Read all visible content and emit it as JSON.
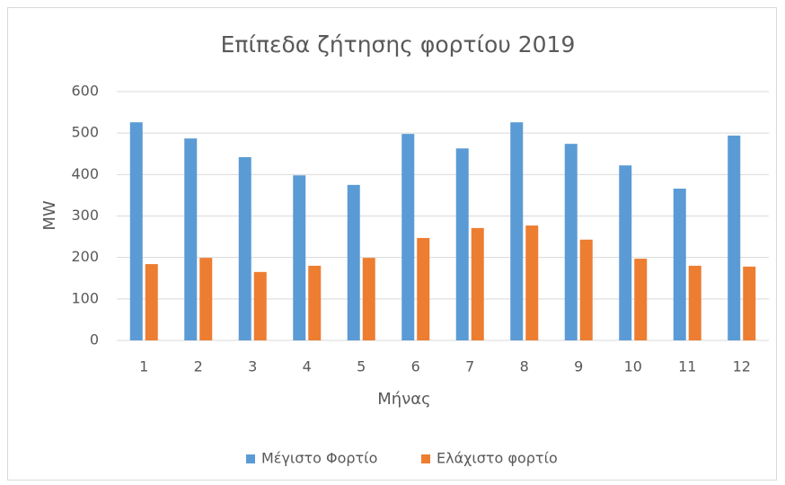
{
  "chart_data": {
    "type": "bar",
    "title": "Επίπεδα ζήτησης φορτίου 2019",
    "x_label": "Μήνας",
    "y_label": "MW",
    "categories": [
      1,
      2,
      3,
      4,
      5,
      6,
      7,
      8,
      9,
      10,
      11,
      12
    ],
    "series": [
      {
        "name": "Μέγιστο Φορτίο",
        "color": "#5b9bd5",
        "values": [
          526,
          487,
          442,
          398,
          375,
          498,
          463,
          526,
          474,
          422,
          366,
          494
        ]
      },
      {
        "name": "Ελάχιστο φορτίο",
        "color": "#ed7d31",
        "values": [
          184,
          199,
          165,
          180,
          199,
          247,
          271,
          277,
          243,
          197,
          180,
          178
        ]
      }
    ],
    "ylim": [
      0,
      600
    ],
    "yticks": [
      0,
      100,
      200,
      300,
      400,
      500,
      600
    ],
    "grid": true,
    "legend": "bottom"
  }
}
